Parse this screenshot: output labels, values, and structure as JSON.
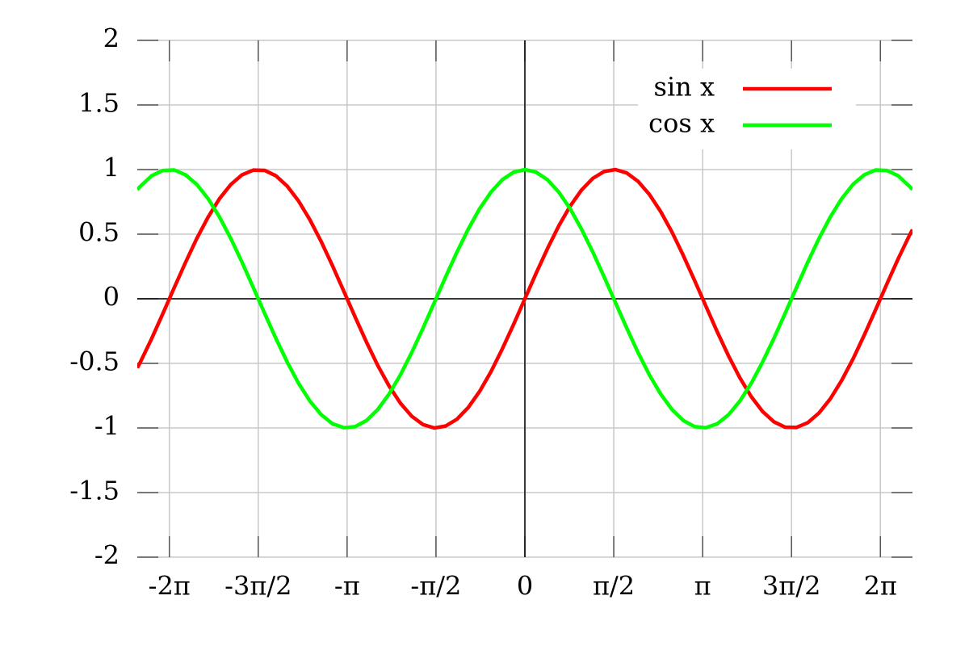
{
  "chart_data": {
    "type": "line",
    "x": [
      -6.85,
      -6.8,
      -6.6,
      -6.4,
      -6.2,
      -6.0,
      -5.8,
      -5.6,
      -5.4,
      -5.2,
      -5.0,
      -4.8,
      -4.6,
      -4.4,
      -4.2,
      -4.0,
      -3.8,
      -3.6,
      -3.4,
      -3.2,
      -3.0,
      -2.8,
      -2.6,
      -2.4,
      -2.2,
      -2.0,
      -1.8,
      -1.6,
      -1.4,
      -1.2,
      -1.0,
      -0.8,
      -0.6,
      -0.4,
      -0.2,
      0,
      0.2,
      0.4,
      0.6,
      0.8,
      1.0,
      1.2,
      1.4,
      1.6,
      1.8,
      2.0,
      2.2,
      2.4,
      2.6,
      2.8,
      3.0,
      3.2,
      3.4,
      3.6,
      3.8,
      4.0,
      4.2,
      4.4,
      4.6,
      4.8,
      5.0,
      5.2,
      5.4,
      5.6,
      5.8,
      6.0,
      6.2,
      6.4,
      6.6,
      6.8,
      6.85
    ],
    "series": [
      {
        "name": "sin x",
        "color": "#ff0000",
        "values": [
          -0.535,
          -0.494,
          -0.312,
          -0.117,
          0.083,
          0.279,
          0.465,
          0.631,
          0.773,
          0.883,
          0.959,
          0.996,
          0.994,
          0.952,
          0.872,
          0.757,
          0.612,
          0.443,
          0.256,
          0.058,
          -0.141,
          -0.335,
          -0.516,
          -0.675,
          -0.808,
          -0.909,
          -0.974,
          -1.0,
          -0.985,
          -0.932,
          -0.841,
          -0.717,
          -0.565,
          -0.389,
          -0.199,
          0,
          0.199,
          0.389,
          0.565,
          0.717,
          0.841,
          0.932,
          0.985,
          1.0,
          0.974,
          0.909,
          0.808,
          0.675,
          0.516,
          0.335,
          0.141,
          -0.058,
          -0.256,
          -0.443,
          -0.612,
          -0.757,
          -0.872,
          -0.952,
          -0.994,
          -0.996,
          -0.959,
          -0.883,
          -0.773,
          -0.631,
          -0.465,
          -0.279,
          -0.083,
          0.117,
          0.312,
          0.494,
          0.535
        ]
      },
      {
        "name": "cos x",
        "color": "#00ff00",
        "values": [
          0.845,
          0.869,
          0.951,
          0.993,
          0.997,
          0.96,
          0.886,
          0.776,
          0.635,
          0.469,
          0.284,
          0.087,
          -0.112,
          -0.307,
          -0.49,
          -0.654,
          -0.791,
          -0.897,
          -0.967,
          -0.998,
          -0.99,
          -0.942,
          -0.857,
          -0.737,
          -0.589,
          -0.416,
          -0.227,
          -0.029,
          0.17,
          0.362,
          0.54,
          0.697,
          0.825,
          0.921,
          0.98,
          1,
          0.98,
          0.921,
          0.825,
          0.697,
          0.54,
          0.362,
          0.17,
          -0.029,
          -0.227,
          -0.416,
          -0.589,
          -0.737,
          -0.857,
          -0.942,
          -0.99,
          -0.998,
          -0.967,
          -0.897,
          -0.791,
          -0.654,
          -0.49,
          -0.307,
          -0.112,
          0.087,
          0.284,
          0.469,
          0.635,
          0.776,
          0.886,
          0.96,
          0.997,
          0.993,
          0.951,
          0.869,
          0.845
        ]
      }
    ],
    "xlim": [
      -6.85,
      6.85
    ],
    "ylim": [
      -2,
      2
    ],
    "xticks": [
      {
        "value": -6.283,
        "label": "-2π"
      },
      {
        "value": -4.712,
        "label": "-3π/2"
      },
      {
        "value": -3.142,
        "label": "-π"
      },
      {
        "value": -1.571,
        "label": "-π/2"
      },
      0,
      {
        "value": 1.571,
        "label": "π/2"
      },
      {
        "value": 3.142,
        "label": "π"
      },
      {
        "value": 4.712,
        "label": "3π/2"
      },
      {
        "value": 6.283,
        "label": "2π"
      }
    ],
    "yticks": [
      -2,
      -1.5,
      -1,
      -0.5,
      0,
      0.5,
      1,
      1.5,
      2
    ],
    "grid": true,
    "legend": "top-right"
  }
}
